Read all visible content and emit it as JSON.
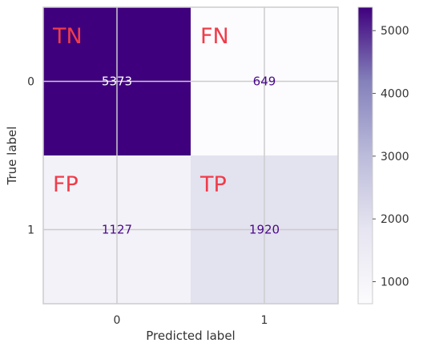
{
  "chart_data": {
    "type": "heatmap",
    "title": "",
    "xlabel": "Predicted label",
    "ylabel": "True label",
    "x_categories": [
      "0",
      "1"
    ],
    "y_categories": [
      "0",
      "1"
    ],
    "values": [
      [
        5373,
        649
      ],
      [
        1127,
        1920
      ]
    ],
    "quadrant_labels": [
      [
        "TN",
        "FN"
      ],
      [
        "FP",
        "TP"
      ]
    ],
    "quadrant_label_color": "#f03c4a",
    "colormap": "Purples",
    "color_range": [
      649,
      5373
    ],
    "colorbar_ticks": [
      1000,
      2000,
      3000,
      4000,
      5000
    ],
    "grid": true
  }
}
